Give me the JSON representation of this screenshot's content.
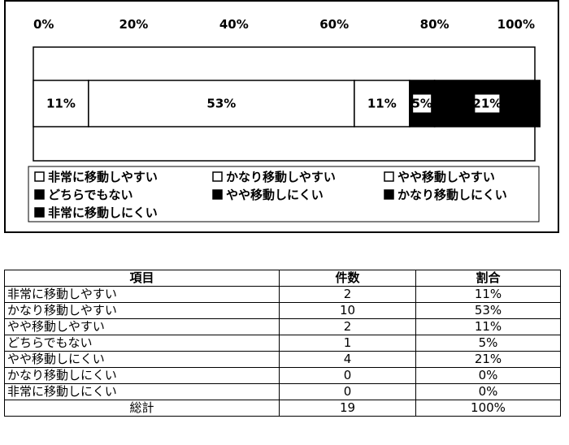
{
  "chart_data": {
    "type": "bar",
    "orientation": "horizontal",
    "stacked": true,
    "xlim": [
      0,
      100
    ],
    "x_tick_labels": [
      "0%",
      "20%",
      "40%",
      "60%",
      "80%",
      "100%"
    ],
    "segments": [
      {
        "name": "非常に移動しやすい",
        "value": 11,
        "label": "11%",
        "color": "#ffffff"
      },
      {
        "name": "かなり移動しやすい",
        "value": 53,
        "label": "53%",
        "color": "#ffffff"
      },
      {
        "name": "やや移動しやすい",
        "value": 11,
        "label": "11%",
        "color": "#ffffff"
      },
      {
        "name": "どちらでもない",
        "value": 5,
        "label": "5%",
        "color": "#000000"
      },
      {
        "name": "やや移動しにくい",
        "value": 21,
        "label": "21%",
        "color": "#000000"
      },
      {
        "name": "かなり移動しにくい",
        "value": 0,
        "label": "",
        "color": "#000000"
      },
      {
        "name": "非常に移動しにくい",
        "value": 0,
        "label": "",
        "color": "#000000"
      }
    ],
    "legend": [
      {
        "label": "非常に移動しやすい",
        "filled": false
      },
      {
        "label": "かなり移動しやすい",
        "filled": false
      },
      {
        "label": "やや移動しやすい",
        "filled": false
      },
      {
        "label": "どちらでもない",
        "filled": true
      },
      {
        "label": "やや移動しにくい",
        "filled": true
      },
      {
        "label": "かなり移動しにくい",
        "filled": true
      },
      {
        "label": "非常に移動しにくい",
        "filled": true
      }
    ],
    "legend_placement": "bottom",
    "grid": false
  },
  "table": {
    "headers": [
      "項目",
      "件数",
      "割合"
    ],
    "rows": [
      [
        "非常に移動しやすい",
        "2",
        "11%"
      ],
      [
        "かなり移動しやすい",
        "10",
        "53%"
      ],
      [
        "やや移動しやすい",
        "2",
        "11%"
      ],
      [
        "どちらでもない",
        "1",
        "5%"
      ],
      [
        "やや移動しにくい",
        "4",
        "21%"
      ],
      [
        "かなり移動しにくい",
        "0",
        "0%"
      ],
      [
        "非常に移動しにくい",
        "0",
        "0%"
      ]
    ],
    "total": [
      "総計",
      "19",
      "100%"
    ]
  }
}
